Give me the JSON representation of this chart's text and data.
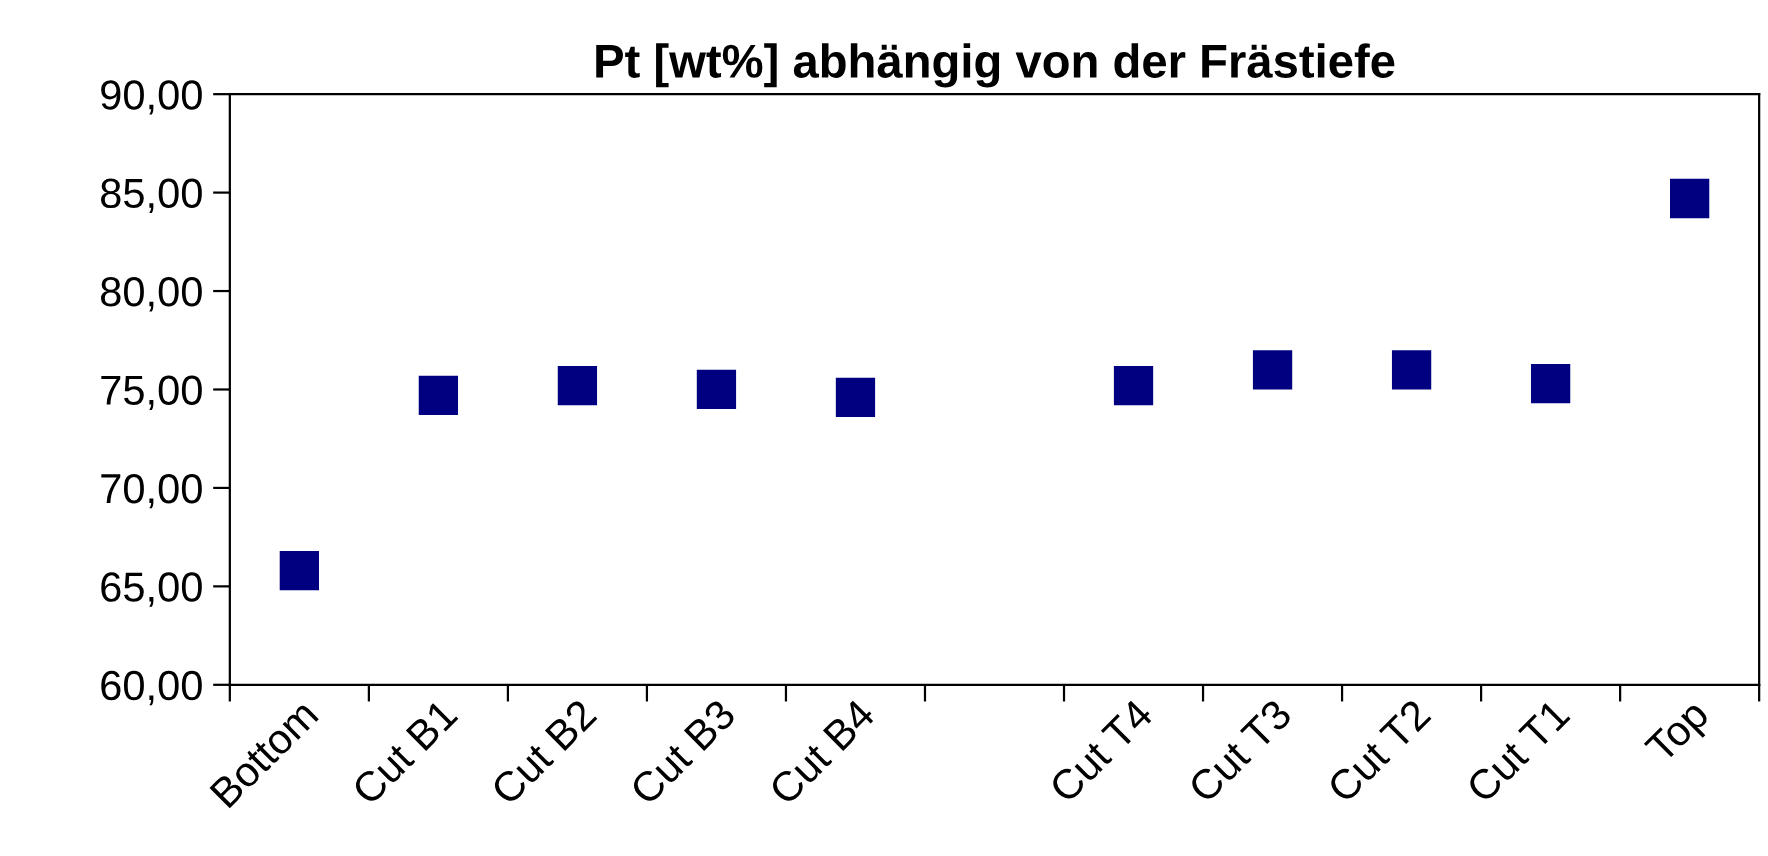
{
  "chart_data": {
    "type": "scatter",
    "title": "Pt [wt%] abhängig von der Frästiefe",
    "categories": [
      "Bottom",
      "Cut B1",
      "Cut B2",
      "Cut B3",
      "Cut B4",
      null,
      "Cut T4",
      "Cut T3",
      "Cut T2",
      "Cut T1",
      "Top"
    ],
    "series": [
      {
        "color": "#000080",
        "values": [
          65.8,
          74.7,
          75.2,
          75.0,
          74.6,
          null,
          75.2,
          76.0,
          76.0,
          75.3,
          84.7
        ]
      }
    ],
    "marker": "square",
    "grid": false,
    "legend": false,
    "ylim": [
      60,
      90
    ],
    "yticks": [
      {
        "value": 60,
        "label": "60,00"
      },
      {
        "value": 65,
        "label": "65,00"
      },
      {
        "value": 70,
        "label": "70,00"
      },
      {
        "value": 75,
        "label": "75,00"
      },
      {
        "value": 80,
        "label": "80,00"
      },
      {
        "value": 85,
        "label": "85,00"
      },
      {
        "value": 90,
        "label": "90,00"
      }
    ]
  }
}
